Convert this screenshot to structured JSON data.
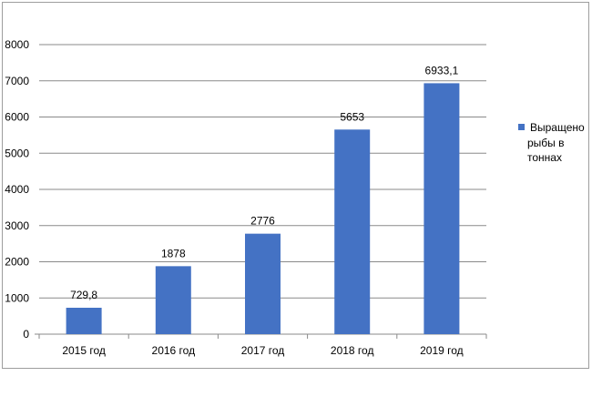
{
  "chart_data": {
    "type": "bar",
    "categories": [
      "2015 год",
      "2016 год",
      "2017 год",
      "2018 год",
      "2019 год"
    ],
    "series": [
      {
        "name": "Выращено рыбы в тоннах",
        "values": [
          729.8,
          1878,
          2776,
          5653,
          6933.1
        ],
        "data_labels": [
          "729,8",
          "1878",
          "2776",
          "5653",
          "6933,1"
        ],
        "color": "#4472C4"
      }
    ],
    "y_ticks": [
      "0",
      "1000",
      "2000",
      "3000",
      "4000",
      "5000",
      "6000",
      "7000",
      "8000"
    ],
    "ylim": [
      0,
      8000
    ],
    "grid": true,
    "legend": {
      "placement": "right",
      "lines": [
        "Выращено",
        "рыбы в",
        "тоннах"
      ]
    }
  }
}
